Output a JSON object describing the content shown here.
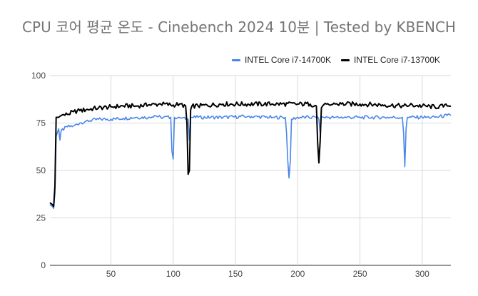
{
  "title": "CPU 코어 평균 온도 - Cinebench 2024 10분 | Tested by KBENCH",
  "colors": {
    "intel_14700k": "#4a86e8",
    "intel_13700k": "#000000",
    "grid": "#d9d9d9"
  },
  "chart_data": {
    "type": "line",
    "title": "CPU 코어 평균 온도 - Cinebench 2024 10분 | Tested by KBENCH",
    "xlabel": "",
    "ylabel": "",
    "xlim": [
      1,
      323
    ],
    "ylim": [
      0,
      100
    ],
    "x_ticks": [
      50,
      100,
      150,
      200,
      250,
      300
    ],
    "y_ticks": [
      0,
      25,
      50,
      75,
      100
    ],
    "grid": true,
    "legend_position": "top-right",
    "series": [
      {
        "name": "INTEL Core i7-14700K",
        "color": "#4a86e8",
        "points": [
          [
            1,
            32
          ],
          [
            3,
            31
          ],
          [
            4,
            30
          ],
          [
            5,
            38
          ],
          [
            6,
            68
          ],
          [
            7,
            70
          ],
          [
            8,
            72
          ],
          [
            9,
            66
          ],
          [
            10,
            71
          ],
          [
            15,
            73
          ],
          [
            20,
            73.5
          ],
          [
            25,
            75
          ],
          [
            30,
            76
          ],
          [
            40,
            77
          ],
          [
            50,
            77
          ],
          [
            60,
            77.5
          ],
          [
            70,
            78
          ],
          [
            80,
            78
          ],
          [
            85,
            79
          ],
          [
            90,
            78
          ],
          [
            98,
            78
          ],
          [
            99,
            60
          ],
          [
            100,
            56
          ],
          [
            101,
            78
          ],
          [
            105,
            78
          ],
          [
            110,
            77
          ],
          [
            112,
            77
          ],
          [
            113,
            66
          ],
          [
            114,
            78
          ],
          [
            120,
            78
          ],
          [
            140,
            78
          ],
          [
            160,
            78.5
          ],
          [
            180,
            78
          ],
          [
            190,
            78
          ],
          [
            191,
            70
          ],
          [
            192,
            55
          ],
          [
            193,
            46
          ],
          [
            194,
            55
          ],
          [
            195,
            77
          ],
          [
            200,
            78
          ],
          [
            215,
            78
          ],
          [
            217,
            77
          ],
          [
            218,
            70
          ],
          [
            219,
            78
          ],
          [
            230,
            78
          ],
          [
            250,
            78
          ],
          [
            270,
            78
          ],
          [
            284,
            78
          ],
          [
            285,
            70
          ],
          [
            286,
            52
          ],
          [
            287,
            72
          ],
          [
            288,
            78
          ],
          [
            300,
            78
          ],
          [
            310,
            78
          ],
          [
            320,
            79
          ],
          [
            323,
            79
          ]
        ]
      },
      {
        "name": "INTEL Core i7-13700K",
        "color": "#000000",
        "points": [
          [
            1,
            33
          ],
          [
            3,
            32
          ],
          [
            4,
            31
          ],
          [
            5,
            42
          ],
          [
            6,
            78
          ],
          [
            8,
            78
          ],
          [
            10,
            79
          ],
          [
            15,
            79.5
          ],
          [
            20,
            81
          ],
          [
            25,
            81.5
          ],
          [
            30,
            82
          ],
          [
            40,
            83
          ],
          [
            50,
            83.5
          ],
          [
            60,
            84
          ],
          [
            70,
            84
          ],
          [
            80,
            84.5
          ],
          [
            90,
            85
          ],
          [
            100,
            84.5
          ],
          [
            105,
            85
          ],
          [
            110,
            84
          ],
          [
            111,
            75
          ],
          [
            112,
            48
          ],
          [
            113,
            50
          ],
          [
            114,
            82
          ],
          [
            115,
            84
          ],
          [
            120,
            84
          ],
          [
            140,
            85
          ],
          [
            160,
            85
          ],
          [
            180,
            85
          ],
          [
            200,
            85
          ],
          [
            210,
            85
          ],
          [
            215,
            84
          ],
          [
            216,
            65
          ],
          [
            217,
            54
          ],
          [
            218,
            65
          ],
          [
            219,
            83
          ],
          [
            220,
            84
          ],
          [
            230,
            85
          ],
          [
            250,
            85
          ],
          [
            270,
            84.5
          ],
          [
            285,
            84
          ],
          [
            290,
            84.5
          ],
          [
            300,
            84
          ],
          [
            310,
            83.5
          ],
          [
            320,
            84
          ],
          [
            323,
            84
          ]
        ]
      }
    ]
  }
}
